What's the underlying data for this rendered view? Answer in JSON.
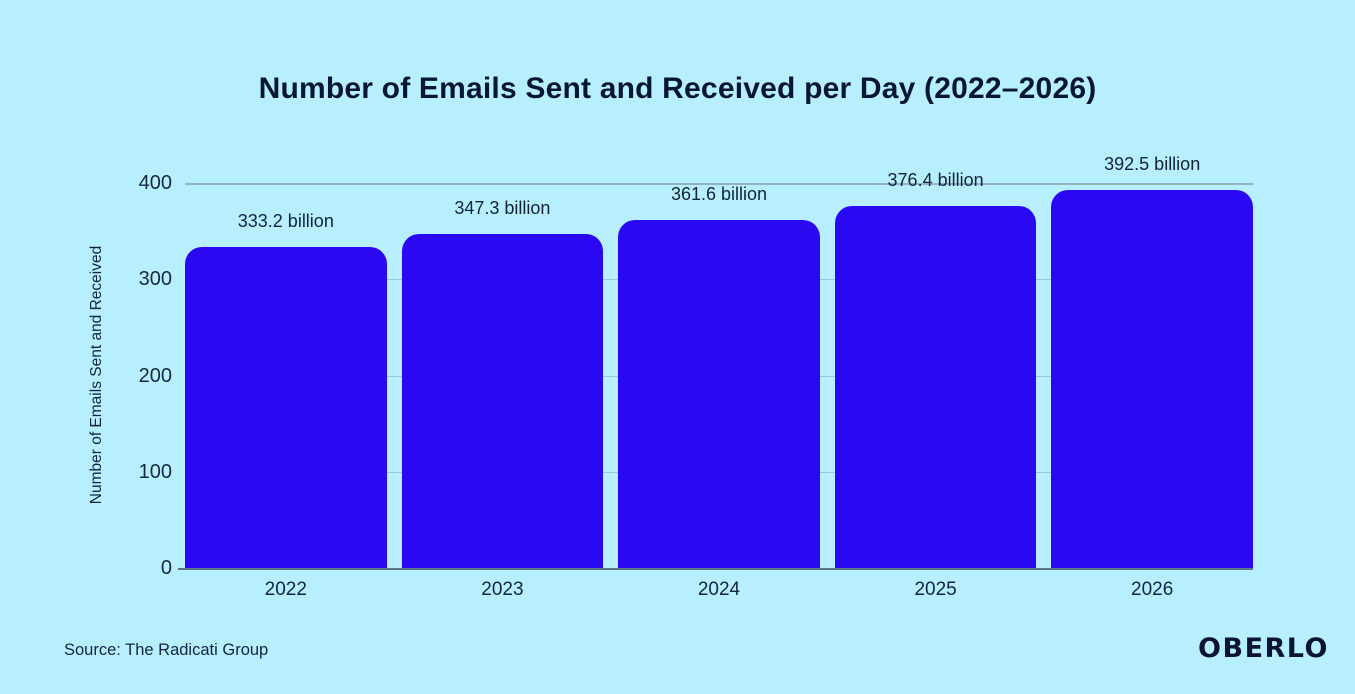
{
  "chart_data": {
    "type": "bar",
    "title": "Number of Emails Sent and Received per Day (2022–2026)",
    "categories": [
      "2022",
      "2023",
      "2024",
      "2025",
      "2026"
    ],
    "values": [
      333.2,
      347.3,
      361.6,
      376.4,
      392.5
    ],
    "value_labels": [
      "333.2 billion",
      "347.3 billion",
      "361.6 billion",
      "376.4 billion",
      "392.5 billion"
    ],
    "xlabel": "",
    "ylabel": "Number of Emails Sent and Received",
    "yticks": [
      0,
      100,
      200,
      300,
      400
    ],
    "ylim": [
      0,
      400
    ],
    "grid": true,
    "legend": "none",
    "unit": "billion emails per day",
    "bar_color": "#2a08f2",
    "background_color": "#b7effe",
    "text_color": "#13253c"
  },
  "footer": {
    "source": "Source: The Radicati Group",
    "brand": "OBERLO"
  }
}
